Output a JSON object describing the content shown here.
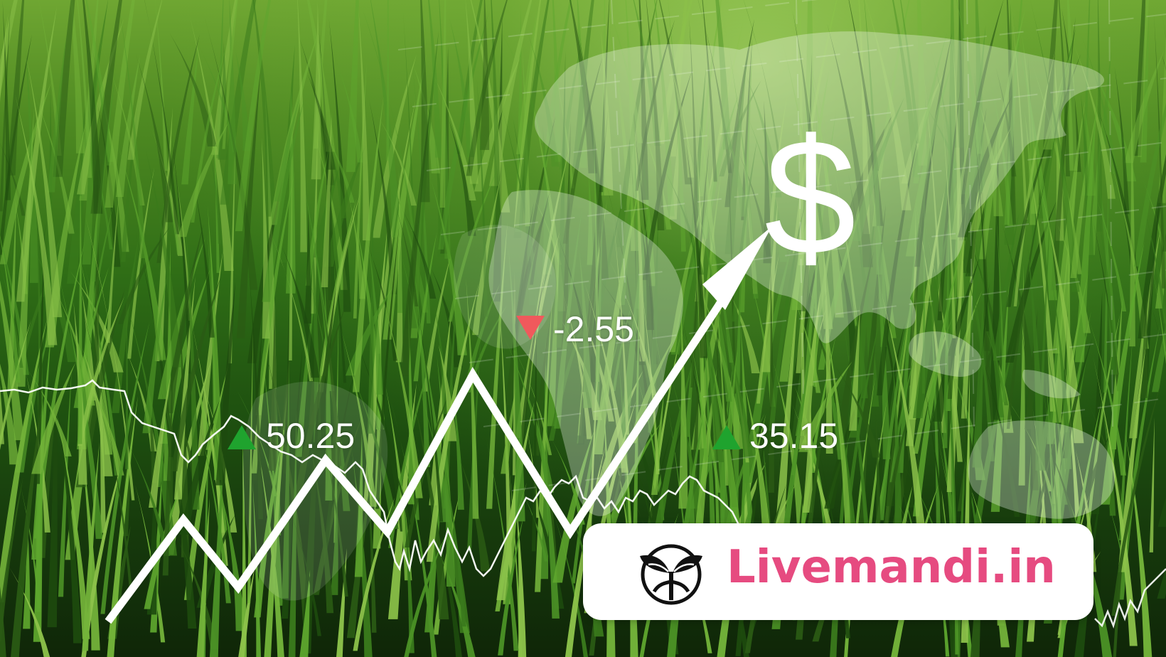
{
  "tickers": [
    {
      "value": "50.25",
      "direction": "up",
      "color": "#1fa32e"
    },
    {
      "value": "-2.55",
      "direction": "down",
      "color": "#f0595c"
    },
    {
      "value": "35.15",
      "direction": "up",
      "color": "#1fa32e"
    }
  ],
  "currency_symbol": "$",
  "brand": {
    "name": "Livemandi.in",
    "color": "#e64b80",
    "logo_icon": "sprout-in-circle-icon"
  },
  "colors": {
    "grass_light": "#74b43a",
    "grass_dark": "#2a5a14",
    "overlay_white": "#ffffff"
  }
}
